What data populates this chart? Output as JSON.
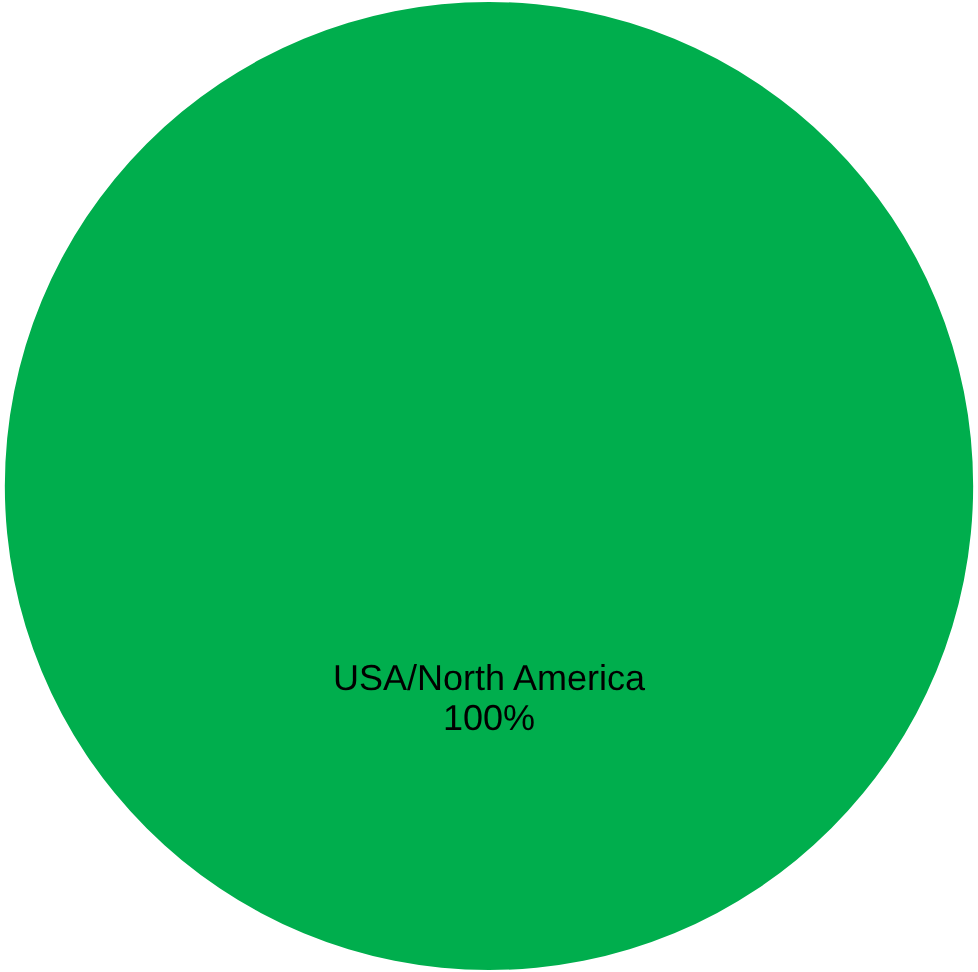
{
  "chart_data": {
    "type": "pie",
    "categories": [
      "USA/North America"
    ],
    "values": [
      100
    ],
    "colors": [
      "#00ae4d"
    ],
    "value_labels": [
      "100%"
    ],
    "legend": false
  }
}
